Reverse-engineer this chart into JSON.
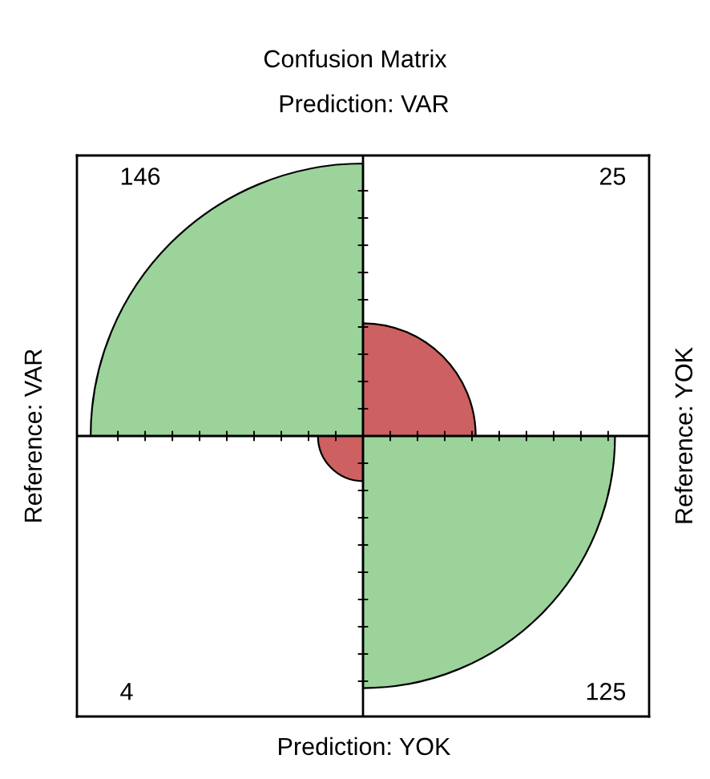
{
  "chart_data": {
    "type": "other",
    "title": "Confusion Matrix",
    "x2label": "Prediction: VAR",
    "xlabel": "Prediction: YOK",
    "ylabel": "Reference: VAR",
    "y2label": "Reference: YOK",
    "categories": [
      null,
      null,
      null,
      null
    ],
    "values": [
      146,
      25,
      4,
      125
    ],
    "colors": [
      "#9bd39b",
      "#cd6060",
      "#cd6060",
      "#9bd39b"
    ],
    "data_labels": true
  }
}
